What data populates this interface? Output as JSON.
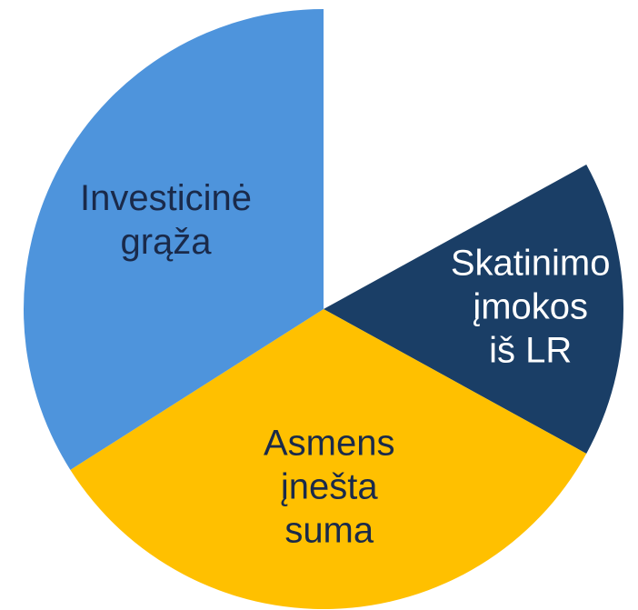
{
  "chart_data": {
    "type": "pie",
    "categories": [
      null,
      [
        "Skatinimo",
        "įmokos",
        "iš LR"
      ],
      [
        "Asmens",
        "įnešta",
        "suma"
      ],
      [
        "Investicinė",
        "grąža"
      ]
    ],
    "values": [
      17,
      16,
      33,
      34
    ],
    "colors": [
      "#ffffff",
      "#1a3e66",
      "#ffc000",
      "#4e94dc"
    ],
    "label_colors": [
      "#ffffff",
      "#ffffff",
      "#1a2a4a",
      "#1a2a4a"
    ]
  }
}
